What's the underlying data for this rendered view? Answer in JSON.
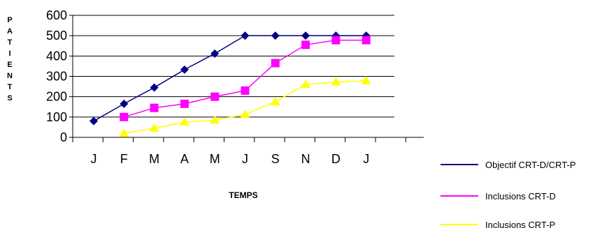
{
  "chart_data": {
    "type": "line",
    "categories": [
      "J",
      "F",
      "M",
      "A",
      "M",
      "J",
      "S",
      "N",
      "D",
      "J"
    ],
    "ylabel": "PATIENTS",
    "xlabel": "TEMPS",
    "ylim": [
      0,
      600
    ],
    "yticks": [
      0,
      100,
      200,
      300,
      400,
      500,
      600
    ],
    "grid": true,
    "legend_position": "bottom-right",
    "series": [
      {
        "name": "Objectif CRT-D/CRT-P",
        "color": "#000080",
        "marker": "diamond",
        "values": [
          80,
          165,
          245,
          333,
          412,
          500,
          500,
          500,
          500,
          500
        ]
      },
      {
        "name": "Inclusions CRT-D",
        "color": "#ff00ff",
        "marker": "square",
        "values": [
          null,
          100,
          145,
          165,
          200,
          230,
          365,
          455,
          478,
          478
        ]
      },
      {
        "name": "Inclusions CRT-P",
        "color": "#ffff00",
        "marker": "triangle",
        "values": [
          null,
          20,
          45,
          75,
          85,
          112,
          175,
          260,
          272,
          278
        ]
      }
    ]
  }
}
